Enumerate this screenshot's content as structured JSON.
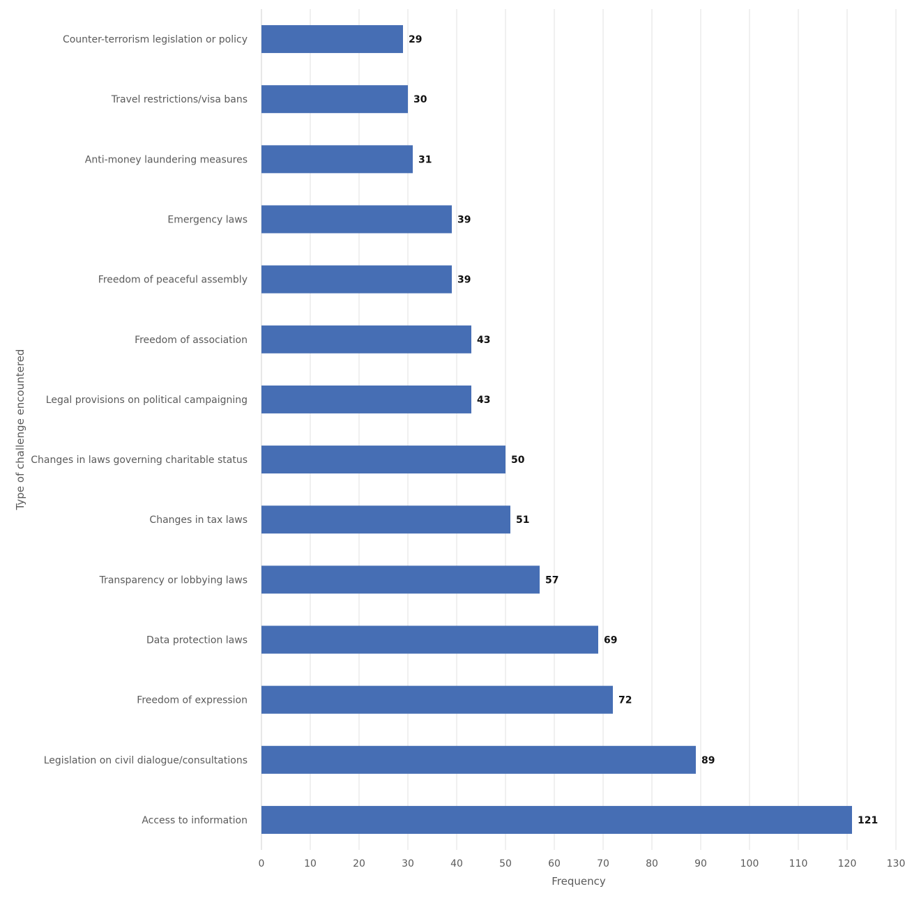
{
  "chart_data": {
    "type": "bar",
    "orientation": "horizontal",
    "xlabel": "Frequency",
    "ylabel": "Type of challenge encountered",
    "xlim": [
      0,
      130
    ],
    "xticks": [
      0,
      10,
      20,
      30,
      40,
      50,
      60,
      70,
      80,
      90,
      100,
      110,
      120,
      130
    ],
    "grid": true,
    "bar_color": "#466eb4",
    "categories": [
      "Counter-terrorism legislation or policy",
      "Travel restrictions/visa bans",
      "Anti-money laundering measures",
      "Emergency laws",
      "Freedom of peaceful assembly",
      "Freedom of association",
      "Legal provisions on political campaigning",
      "Changes in laws governing charitable status",
      "Changes in tax laws",
      "Transparency or lobbying laws",
      "Data protection laws",
      "Freedom of expression",
      "Legislation on civil dialogue/consultations",
      "Access to information"
    ],
    "values": [
      29,
      30,
      31,
      39,
      39,
      43,
      43,
      50,
      51,
      57,
      69,
      72,
      89,
      121
    ]
  }
}
